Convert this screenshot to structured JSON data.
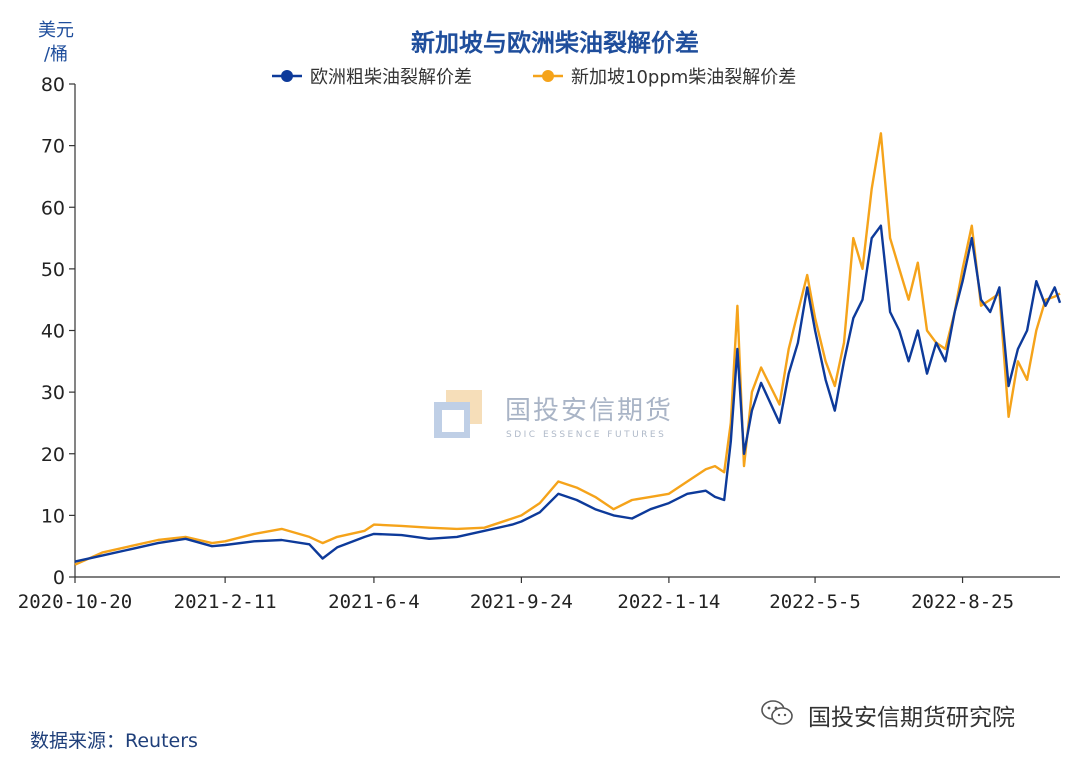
{
  "chart_data": {
    "type": "line",
    "title": "新加坡与欧洲柴油裂解价差",
    "ylabel_line1": "美元",
    "ylabel_line2": "/桶",
    "ylim": [
      0,
      80
    ],
    "yticks": [
      "0",
      "10",
      "20",
      "30",
      "40",
      "50",
      "60",
      "70",
      "80"
    ],
    "xtick_labels": [
      "2020-10-20",
      "2021-2-11",
      "2021-6-4",
      "2021-9-24",
      "2022-1-14",
      "2022-5-5",
      "2022-8-25"
    ],
    "xlim": [
      "2020-10-20",
      "2022-11-07"
    ],
    "grid": false,
    "legend_position": "top-center",
    "series": [
      {
        "name": "欧洲粗柴油裂解价差",
        "color": "#0d3a9a",
        "points": [
          [
            "2020-10-20",
            2.5
          ],
          [
            "2020-11-10",
            3.5
          ],
          [
            "2020-12-01",
            4.5
          ],
          [
            "2020-12-22",
            5.5
          ],
          [
            "2021-01-12",
            6.2
          ],
          [
            "2021-02-01",
            5.0
          ],
          [
            "2021-02-11",
            5.2
          ],
          [
            "2021-03-05",
            5.8
          ],
          [
            "2021-03-26",
            6.0
          ],
          [
            "2021-04-16",
            5.3
          ],
          [
            "2021-04-26",
            3.0
          ],
          [
            "2021-05-07",
            4.8
          ],
          [
            "2021-05-28",
            6.5
          ],
          [
            "2021-06-04",
            7.0
          ],
          [
            "2021-06-25",
            6.8
          ],
          [
            "2021-07-16",
            6.2
          ],
          [
            "2021-08-06",
            6.5
          ],
          [
            "2021-08-27",
            7.5
          ],
          [
            "2021-09-17",
            8.5
          ],
          [
            "2021-09-24",
            9.0
          ],
          [
            "2021-10-08",
            10.5
          ],
          [
            "2021-10-22",
            13.5
          ],
          [
            "2021-11-05",
            12.5
          ],
          [
            "2021-11-19",
            11.0
          ],
          [
            "2021-12-03",
            10.0
          ],
          [
            "2021-12-17",
            9.5
          ],
          [
            "2021-12-31",
            11.0
          ],
          [
            "2022-01-14",
            12.0
          ],
          [
            "2022-01-28",
            13.5
          ],
          [
            "2022-02-11",
            14.0
          ],
          [
            "2022-02-18",
            13.0
          ],
          [
            "2022-02-25",
            12.5
          ],
          [
            "2022-03-02",
            22.0
          ],
          [
            "2022-03-07",
            37.0
          ],
          [
            "2022-03-12",
            20.0
          ],
          [
            "2022-03-18",
            27.0
          ],
          [
            "2022-03-25",
            31.5
          ],
          [
            "2022-04-08",
            25.0
          ],
          [
            "2022-04-15",
            33.0
          ],
          [
            "2022-04-22",
            38.0
          ],
          [
            "2022-04-29",
            47.0
          ],
          [
            "2022-05-05",
            40.0
          ],
          [
            "2022-05-13",
            32.0
          ],
          [
            "2022-05-20",
            27.0
          ],
          [
            "2022-05-27",
            35.0
          ],
          [
            "2022-06-03",
            42.0
          ],
          [
            "2022-06-10",
            45.0
          ],
          [
            "2022-06-17",
            55.0
          ],
          [
            "2022-06-24",
            57.0
          ],
          [
            "2022-07-01",
            43.0
          ],
          [
            "2022-07-08",
            40.0
          ],
          [
            "2022-07-15",
            35.0
          ],
          [
            "2022-07-22",
            40.0
          ],
          [
            "2022-07-29",
            33.0
          ],
          [
            "2022-08-05",
            38.0
          ],
          [
            "2022-08-12",
            35.0
          ],
          [
            "2022-08-19",
            43.0
          ],
          [
            "2022-08-25",
            48.0
          ],
          [
            "2022-09-01",
            55.0
          ],
          [
            "2022-09-08",
            45.0
          ],
          [
            "2022-09-15",
            43.0
          ],
          [
            "2022-09-22",
            47.0
          ],
          [
            "2022-09-29",
            31.0
          ],
          [
            "2022-10-06",
            37.0
          ],
          [
            "2022-10-13",
            40.0
          ],
          [
            "2022-10-20",
            48.0
          ],
          [
            "2022-10-27",
            44.0
          ],
          [
            "2022-11-03",
            47.0
          ],
          [
            "2022-11-07",
            44.5
          ]
        ]
      },
      {
        "name": "新加坡10ppm柴油裂解价差",
        "color": "#f5a31a",
        "points": [
          [
            "2020-10-20",
            2.0
          ],
          [
            "2020-11-10",
            4.0
          ],
          [
            "2020-12-01",
            5.0
          ],
          [
            "2020-12-22",
            6.0
          ],
          [
            "2021-01-12",
            6.5
          ],
          [
            "2021-02-01",
            5.5
          ],
          [
            "2021-02-11",
            5.8
          ],
          [
            "2021-03-05",
            7.0
          ],
          [
            "2021-03-26",
            7.8
          ],
          [
            "2021-04-16",
            6.5
          ],
          [
            "2021-04-26",
            5.5
          ],
          [
            "2021-05-07",
            6.5
          ],
          [
            "2021-05-28",
            7.5
          ],
          [
            "2021-06-04",
            8.5
          ],
          [
            "2021-06-25",
            8.3
          ],
          [
            "2021-07-16",
            8.0
          ],
          [
            "2021-08-06",
            7.8
          ],
          [
            "2021-08-27",
            8.0
          ],
          [
            "2021-09-17",
            9.5
          ],
          [
            "2021-09-24",
            10.0
          ],
          [
            "2021-10-08",
            12.0
          ],
          [
            "2021-10-22",
            15.5
          ],
          [
            "2021-11-05",
            14.5
          ],
          [
            "2021-11-19",
            13.0
          ],
          [
            "2021-12-03",
            11.0
          ],
          [
            "2021-12-17",
            12.5
          ],
          [
            "2021-12-31",
            13.0
          ],
          [
            "2022-01-14",
            13.5
          ],
          [
            "2022-01-28",
            15.5
          ],
          [
            "2022-02-11",
            17.5
          ],
          [
            "2022-02-18",
            18.0
          ],
          [
            "2022-02-25",
            17.0
          ],
          [
            "2022-03-02",
            25.0
          ],
          [
            "2022-03-07",
            44.0
          ],
          [
            "2022-03-12",
            18.0
          ],
          [
            "2022-03-18",
            30.0
          ],
          [
            "2022-03-25",
            34.0
          ],
          [
            "2022-04-08",
            28.0
          ],
          [
            "2022-04-15",
            37.0
          ],
          [
            "2022-04-22",
            43.0
          ],
          [
            "2022-04-29",
            49.0
          ],
          [
            "2022-05-05",
            42.0
          ],
          [
            "2022-05-13",
            35.0
          ],
          [
            "2022-05-20",
            31.0
          ],
          [
            "2022-05-27",
            38.0
          ],
          [
            "2022-06-03",
            55.0
          ],
          [
            "2022-06-10",
            50.0
          ],
          [
            "2022-06-17",
            63.0
          ],
          [
            "2022-06-24",
            72.0
          ],
          [
            "2022-07-01",
            55.0
          ],
          [
            "2022-07-08",
            50.0
          ],
          [
            "2022-07-15",
            45.0
          ],
          [
            "2022-07-22",
            51.0
          ],
          [
            "2022-07-29",
            40.0
          ],
          [
            "2022-08-05",
            38.0
          ],
          [
            "2022-08-12",
            37.0
          ],
          [
            "2022-08-19",
            43.0
          ],
          [
            "2022-08-25",
            50.0
          ],
          [
            "2022-09-01",
            57.0
          ],
          [
            "2022-09-08",
            44.0
          ],
          [
            "2022-09-15",
            45.0
          ],
          [
            "2022-09-22",
            46.0
          ],
          [
            "2022-09-29",
            26.0
          ],
          [
            "2022-10-06",
            35.0
          ],
          [
            "2022-10-13",
            32.0
          ],
          [
            "2022-10-20",
            40.0
          ],
          [
            "2022-10-27",
            45.0
          ],
          [
            "2022-11-03",
            45.5
          ],
          [
            "2022-11-07",
            46.0
          ]
        ]
      }
    ]
  },
  "source_text": "数据来源：Reuters",
  "watermark": {
    "brand": "国投安信期货研究院",
    "center_cn": "国投安信期货",
    "center_en": "SDIC ESSENCE FUTURES",
    "icon": "wechat-icon"
  }
}
